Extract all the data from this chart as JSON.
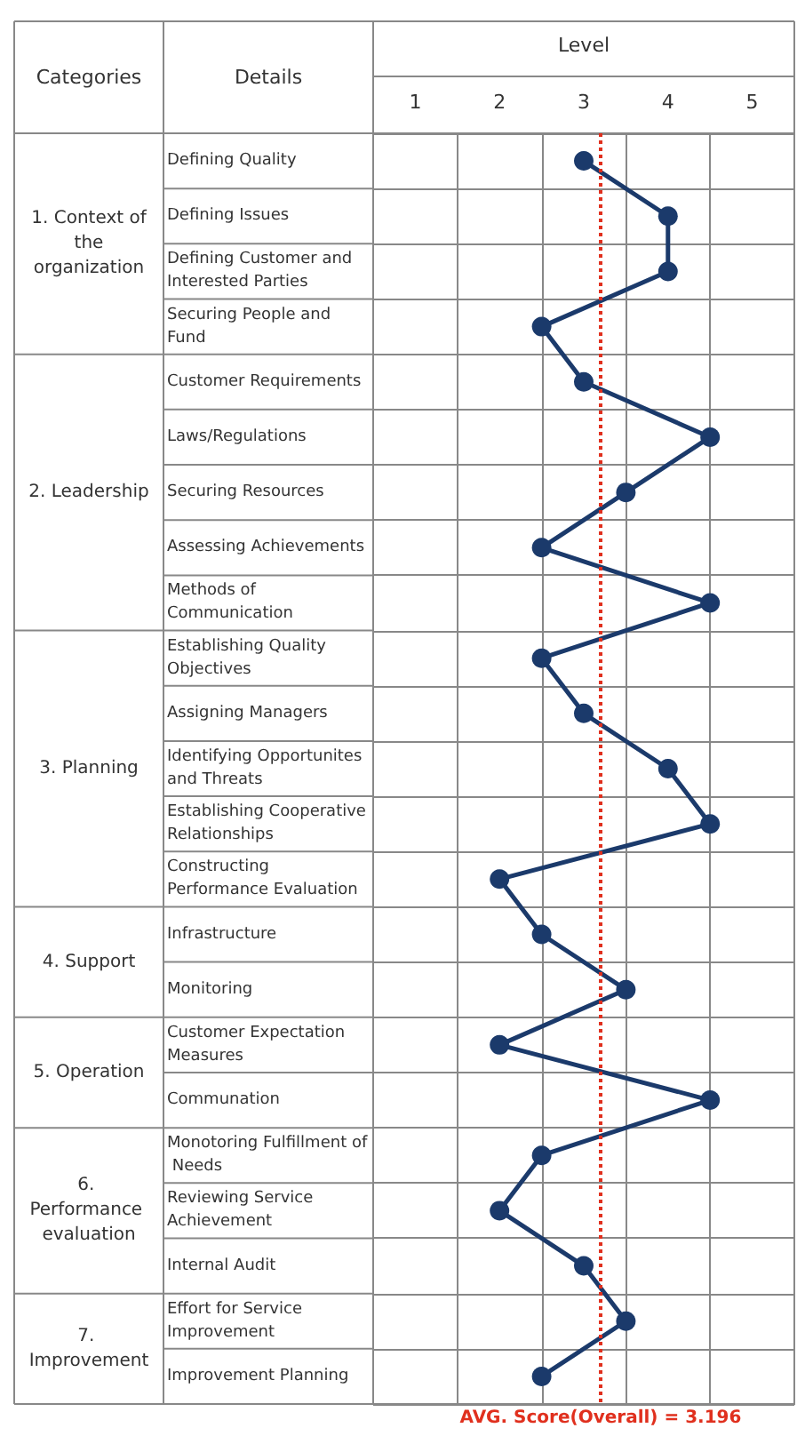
{
  "chart_data": {
    "type": "line",
    "orientation": "horizontal",
    "xlabel": "Level",
    "ylabel": "Details",
    "categories": [
      "Defining Quality",
      "Defining Issues",
      "Defining Customer and Interested Parties",
      "Securing People and Fund",
      "Customer Requirements",
      "Laws/Regulations",
      "Securing Resources",
      "Assessing Achievements",
      "Methods of Communication",
      "Establishing Quality Objectives",
      "Assigning Managers",
      "Identifying Opportunites and Threats",
      "Establishing Cooperative Relationships",
      "Constructing Performance Evaluation",
      "Infrastructure",
      "Monitoring",
      "Customer Expectation Measures",
      "Communation",
      "Monotoring Fulfillment of Needs",
      "Reviewing Service Achievement",
      "Internal Audit",
      "Effort for Service Improvement",
      "Improvement Planning"
    ],
    "series": [
      {
        "color": "#1b3a6b",
        "values": [
          3,
          4,
          4,
          2.5,
          3,
          4.5,
          3.5,
          2.5,
          4.5,
          2.5,
          3,
          4,
          4.5,
          2,
          2.5,
          3.5,
          2,
          4.5,
          2.5,
          2,
          3,
          3.5,
          2.5
        ]
      }
    ],
    "xlim": [
      0.5,
      5.5
    ],
    "xticks": [
      1,
      {
        "value": 1.5,
        "label": null
      },
      2,
      {
        "value": 2.5,
        "label": null
      },
      3,
      {
        "value": 3.5,
        "label": null
      },
      4,
      {
        "value": 4.5,
        "label": null
      },
      5
    ],
    "grid": true,
    "marker": "circle",
    "line_style": "solid",
    "ref_lines": [
      {
        "axis": "x",
        "value": 3.196,
        "label": "AVG. Score(Overall) = 3.196",
        "color": "#e0301e",
        "line_style": "dotted"
      }
    ],
    "annotations": [
      "Categories",
      "1. Context of the organization",
      "2. Leadership",
      "3. Planning",
      "4. Support",
      "5. Operation",
      "6. Performance evaluation",
      "7. Improvement"
    ]
  }
}
